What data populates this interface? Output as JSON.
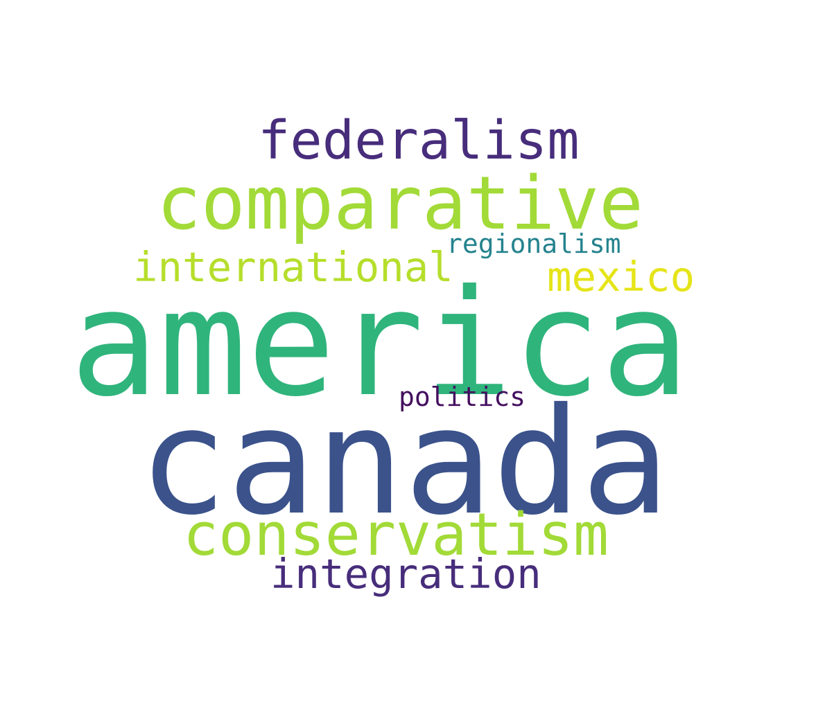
{
  "background": "#ffffff",
  "words": {
    "america": {
      "text": "america",
      "color": "#2fb47c"
    },
    "canada": {
      "text": "canada",
      "color": "#3b528b"
    },
    "comparative": {
      "text": "comparative",
      "color": "#a2da37"
    },
    "conservatism": {
      "text": "conservatism",
      "color": "#a2da37"
    },
    "federalism": {
      "text": "federalism",
      "color": "#472d7b"
    },
    "international": {
      "text": "international",
      "color": "#b5de2b"
    },
    "mexico": {
      "text": "mexico",
      "color": "#e5e419"
    },
    "integration": {
      "text": "integration",
      "color": "#472d7b"
    },
    "regionalism": {
      "text": "regionalism",
      "color": "#25838e"
    },
    "politics": {
      "text": "politics",
      "color": "#440f5f"
    }
  }
}
